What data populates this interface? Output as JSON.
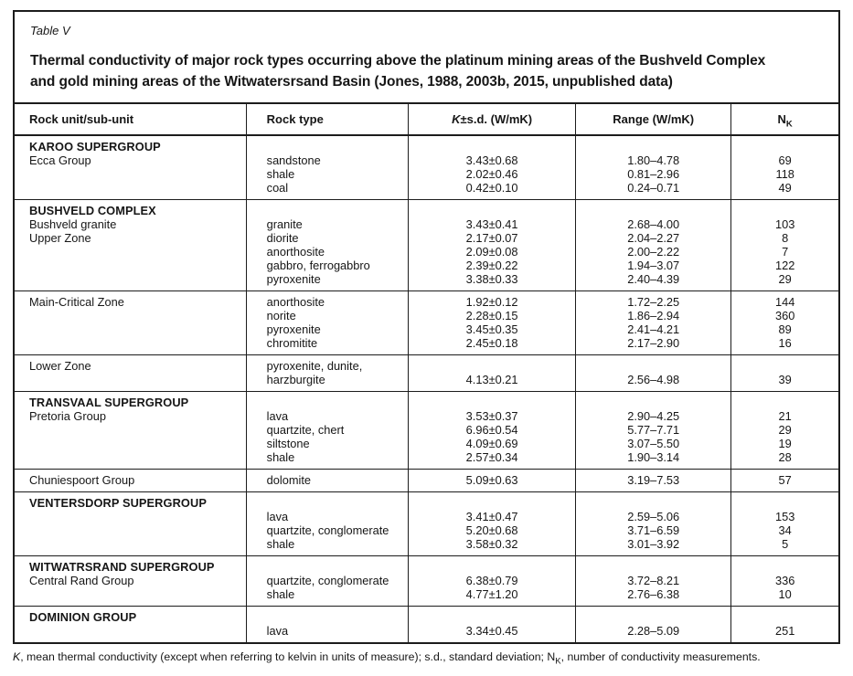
{
  "table": {
    "label": "Table V",
    "title_line1": "Thermal conductivity of major rock types occurring above the platinum mining areas of the Bushveld Complex",
    "title_line2": "and gold mining areas of the Witwatersrsand Basin (Jones, 1988, 2003b, 2015, unpublished data)",
    "columns": {
      "unit": "Rock unit/sub-unit",
      "rock_type": "Rock type",
      "k_italic": "K",
      "k_rest": "±s.d. (W/mK)",
      "range": "Range (W/mK)",
      "n_base": "N",
      "n_sub": "K"
    },
    "sections": [
      {
        "rows": [
          {
            "unit": "KAROO SUPERGROUP",
            "bold": true,
            "rock": "",
            "k": "",
            "range": "",
            "n": ""
          },
          {
            "unit": "Ecca Group",
            "bold": false,
            "rock": "sandstone",
            "k": "3.43±0.68",
            "range": "1.80–4.78",
            "n": "69"
          },
          {
            "unit": "",
            "bold": false,
            "rock": "shale",
            "k": "2.02±0.46",
            "range": "0.81–2.96",
            "n": "118"
          },
          {
            "unit": "",
            "bold": false,
            "rock": "coal",
            "k": "0.42±0.10",
            "range": "0.24–0.71",
            "n": "49"
          }
        ]
      },
      {
        "rows": [
          {
            "unit": "BUSHVELD COMPLEX",
            "bold": true,
            "rock": "",
            "k": "",
            "range": "",
            "n": ""
          },
          {
            "unit": "Bushveld granite",
            "bold": false,
            "rock": "granite",
            "k": "3.43±0.41",
            "range": "2.68–4.00",
            "n": "103"
          },
          {
            "unit": "Upper Zone",
            "bold": false,
            "rock": "diorite",
            "k": "2.17±0.07",
            "range": "2.04–2.27",
            "n": "8"
          },
          {
            "unit": "",
            "bold": false,
            "rock": "anorthosite",
            "k": "2.09±0.08",
            "range": "2.00–2.22",
            "n": "7"
          },
          {
            "unit": "",
            "bold": false,
            "rock": "gabbro, ferrogabbro",
            "k": "2.39±0.22",
            "range": "1.94–3.07",
            "n": "122"
          },
          {
            "unit": "",
            "bold": false,
            "rock": "pyroxenite",
            "k": "3.38±0.33",
            "range": "2.40–4.39",
            "n": "29"
          }
        ]
      },
      {
        "rows": [
          {
            "unit": "Main-Critical Zone",
            "bold": false,
            "rock": "anorthosite",
            "k": "1.92±0.12",
            "range": "1.72–2.25",
            "n": "144"
          },
          {
            "unit": "",
            "bold": false,
            "rock": "norite",
            "k": "2.28±0.15",
            "range": "1.86–2.94",
            "n": "360"
          },
          {
            "unit": "",
            "bold": false,
            "rock": "pyroxenite",
            "k": "3.45±0.35",
            "range": "2.41–4.21",
            "n": "89"
          },
          {
            "unit": "",
            "bold": false,
            "rock": "chromitite",
            "k": "2.45±0.18",
            "range": "2.17–2.90",
            "n": "16"
          }
        ]
      },
      {
        "rows": [
          {
            "unit": "Lower Zone",
            "bold": false,
            "rock": "pyroxenite, dunite,",
            "k": "",
            "range": "",
            "n": ""
          },
          {
            "unit": "",
            "bold": false,
            "rock": "harzburgite",
            "k": "4.13±0.21",
            "range": "2.56–4.98",
            "n": "39"
          }
        ]
      },
      {
        "rows": [
          {
            "unit": "TRANSVAAL SUPERGROUP",
            "bold": true,
            "rock": "",
            "k": "",
            "range": "",
            "n": ""
          },
          {
            "unit": "Pretoria Group",
            "bold": false,
            "rock": "lava",
            "k": "3.53±0.37",
            "range": "2.90–4.25",
            "n": "21"
          },
          {
            "unit": "",
            "bold": false,
            "rock": "quartzite, chert",
            "k": "6.96±0.54",
            "range": "5.77–7.71",
            "n": "29"
          },
          {
            "unit": "",
            "bold": false,
            "rock": "siltstone",
            "k": "4.09±0.69",
            "range": "3.07–5.50",
            "n": "19"
          },
          {
            "unit": "",
            "bold": false,
            "rock": "shale",
            "k": "2.57±0.34",
            "range": "1.90–3.14",
            "n": "28"
          }
        ]
      },
      {
        "rows": [
          {
            "unit": "Chuniespoort Group",
            "bold": false,
            "rock": "dolomite",
            "k": "5.09±0.63",
            "range": "3.19–7.53",
            "n": "57"
          }
        ]
      },
      {
        "rows": [
          {
            "unit": "VENTERSDORP SUPERGROUP",
            "bold": true,
            "rock": "",
            "k": "",
            "range": "",
            "n": ""
          },
          {
            "unit": "",
            "bold": false,
            "rock": "lava",
            "k": "3.41±0.47",
            "range": "2.59–5.06",
            "n": "153"
          },
          {
            "unit": "",
            "bold": false,
            "rock": "quartzite, conglomerate",
            "k": "5.20±0.68",
            "range": "3.71–6.59",
            "n": "34"
          },
          {
            "unit": "",
            "bold": false,
            "rock": "shale",
            "k": "3.58±0.32",
            "range": "3.01–3.92",
            "n": "5"
          }
        ]
      },
      {
        "rows": [
          {
            "unit": "WITWATRSRAND SUPERGROUP",
            "bold": true,
            "rock": "",
            "k": "",
            "range": "",
            "n": ""
          },
          {
            "unit": "Central Rand Group",
            "bold": false,
            "rock": "quartzite, conglomerate",
            "k": "6.38±0.79",
            "range": "3.72–8.21",
            "n": "336"
          },
          {
            "unit": "",
            "bold": false,
            "rock": "shale",
            "k": "4.77±1.20",
            "range": "2.76–6.38",
            "n": "10"
          }
        ]
      },
      {
        "rows": [
          {
            "unit": "DOMINION GROUP",
            "bold": true,
            "rock": "",
            "k": "",
            "range": "",
            "n": ""
          },
          {
            "unit": "",
            "bold": false,
            "rock": "lava",
            "k": "3.34±0.45",
            "range": "2.28–5.09",
            "n": "251"
          }
        ]
      }
    ]
  },
  "footnote": {
    "k_italic": "K",
    "part1": ", mean thermal conductivity (except when referring to kelvin in units of measure); s.d., standard deviation; ",
    "n_base": "N",
    "n_sub": "K",
    "part2": ", number of conductivity measurements."
  }
}
